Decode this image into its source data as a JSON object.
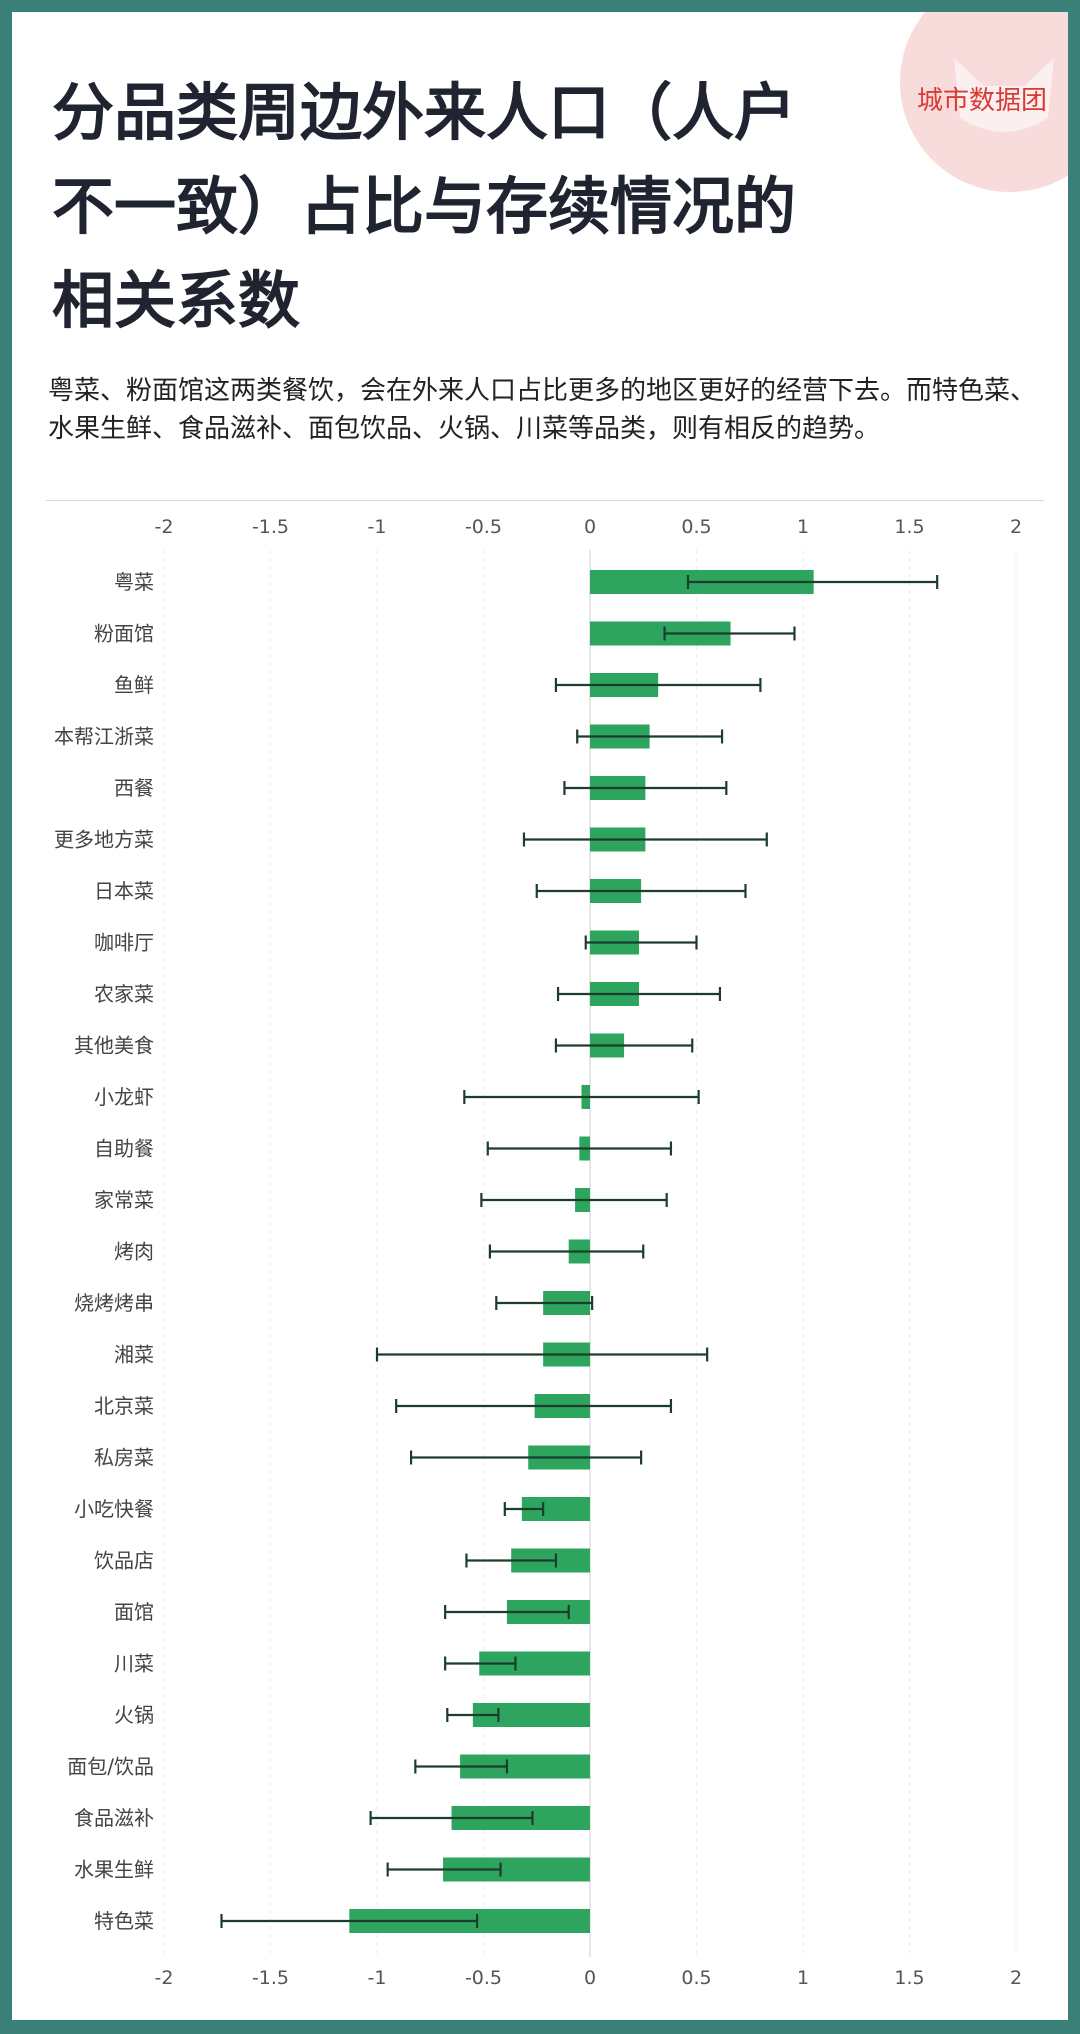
{
  "brand": {
    "logo_text": "城市数据团",
    "accent": "#d83a34"
  },
  "title_lines": [
    "分品类周边外来人口（人户",
    "不一致）占比与存续情况的",
    "相关系数"
  ],
  "subtitle": "粤菜、粉面馆这两类餐饮，会在外来人口占比更多的地区更好的经营下去。而特色菜、水果生鲜、食品滋补、面包饮品、火锅、川菜等品类，则有相反的趋势。",
  "colors": {
    "bar": "#2ea55f",
    "error_bar": "#1d3d2c",
    "frame": "#3a7f78"
  },
  "chart_data": {
    "type": "bar",
    "orientation": "horizontal",
    "xlim": [
      -2,
      2
    ],
    "xticks": [
      "-2",
      "-1.5",
      "-1",
      "-0.5",
      "0",
      "0.5",
      "1",
      "1.5",
      "2"
    ],
    "xtick_values": [
      -2,
      -1.5,
      -1,
      -0.5,
      0,
      0.5,
      1,
      1.5,
      2
    ],
    "grid": true,
    "categories": [
      "粤菜",
      "粉面馆",
      "鱼鲜",
      "本帮江浙菜",
      "西餐",
      "更多地方菜",
      "日本菜",
      "咖啡厅",
      "农家菜",
      "其他美食",
      "小龙虾",
      "自助餐",
      "家常菜",
      "烤肉",
      "烧烤烤串",
      "湘菜",
      "北京菜",
      "私房菜",
      "小吃快餐",
      "饮品店",
      "面馆",
      "川菜",
      "火锅",
      "面包/饮品",
      "食品滋补",
      "水果生鲜",
      "特色菜"
    ],
    "values": [
      1.05,
      0.66,
      0.32,
      0.28,
      0.26,
      0.26,
      0.24,
      0.23,
      0.23,
      0.16,
      -0.04,
      -0.05,
      -0.07,
      -0.1,
      -0.22,
      -0.22,
      -0.26,
      -0.29,
      -0.32,
      -0.37,
      -0.39,
      -0.52,
      -0.55,
      -0.61,
      -0.65,
      -0.69,
      -1.13
    ],
    "error_low": [
      0.46,
      0.35,
      -0.16,
      -0.06,
      -0.12,
      -0.31,
      -0.25,
      -0.02,
      -0.15,
      -0.16,
      -0.59,
      -0.48,
      -0.51,
      -0.47,
      -0.44,
      -1.0,
      -0.91,
      -0.84,
      -0.4,
      -0.58,
      -0.68,
      -0.68,
      -0.67,
      -0.82,
      -1.03,
      -0.95,
      -1.73
    ],
    "error_high": [
      1.63,
      0.96,
      0.8,
      0.62,
      0.64,
      0.83,
      0.73,
      0.5,
      0.61,
      0.48,
      0.51,
      0.38,
      0.36,
      0.25,
      0.01,
      0.55,
      0.38,
      0.24,
      -0.22,
      -0.16,
      -0.1,
      -0.35,
      -0.43,
      -0.39,
      -0.27,
      -0.42,
      -0.53
    ]
  }
}
